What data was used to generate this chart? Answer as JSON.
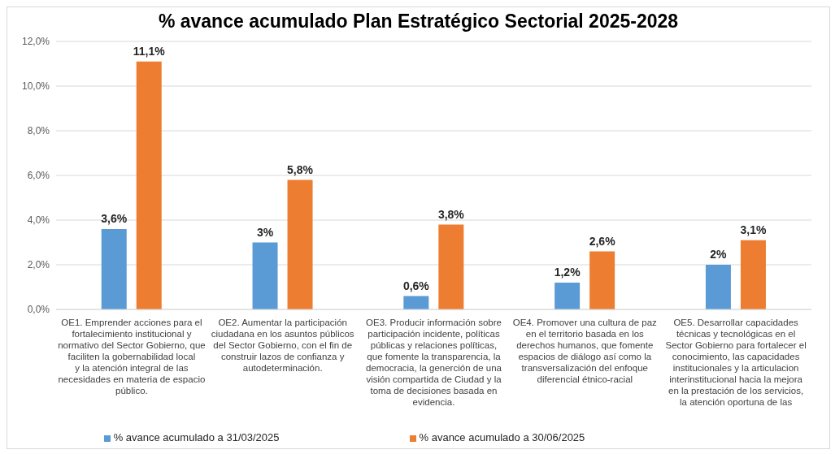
{
  "chart_data": {
    "type": "bar",
    "title": "% avance acumulado Plan Estratégico Sectorial 2025-2028",
    "categories": [
      "OE1. Emprender acciones para el fortalecimiento institucional y normativo del Sector Gobierno, que faciliten la gobernabilidad local y la atención integral de las necesidades en materia de espacio público.",
      "OE2.  Aumentar la participación ciudadana en los asuntos públicos del Sector Gobierno, con el fin de construir lazos de confianza y autodeterminación.",
      "OE3. Producir información sobre participación incidente, políticas públicas y relaciones políticas, que fomente la transparencia, la democracia, la generción de una visión compartida de Ciudad y la toma de decisiones basada en evidencia.",
      "OE4.  Promover una cultura de paz en el territorio basada en los derechos humanos,  que fomente espacios de diálogo así como la transversalización del enfoque diferencial étnico-racial",
      "OE5.  Desarrollar capacidades técnicas y tecnológicas en el Sector Gobierno para fortalecer el conocimiento, las capacidades institucionales y la articulacion interinstitucional hacia la mejora en la prestación de los servicios, la atención oportuna de las"
    ],
    "series": [
      {
        "name": "% avance acumulado a 31/03/2025",
        "color": "#5b9bd5",
        "values": [
          3.6,
          3,
          0.6,
          1.2,
          2
        ],
        "value_labels": [
          "3,6%",
          "3%",
          "0,6%",
          "1,2%",
          "2%"
        ]
      },
      {
        "name": "% avance acumulado a 30/06/2025",
        "color": "#ed7d31",
        "values": [
          11.1,
          5.8,
          3.8,
          2.6,
          3.1
        ],
        "value_labels": [
          "11,1%",
          "5,8%",
          "3,8%",
          "2,6%",
          "3,1%"
        ]
      }
    ],
    "ylim": [
      0,
      12
    ],
    "yticks": [
      {
        "value": 0,
        "label": "0,0%"
      },
      {
        "value": 2,
        "label": "2,0%"
      },
      {
        "value": 4,
        "label": "4,0%"
      },
      {
        "value": 6,
        "label": "6,0%"
      },
      {
        "value": 8,
        "label": "8,0%"
      },
      {
        "value": 10,
        "label": "10,0%"
      },
      {
        "value": 12,
        "label": "12,0%"
      }
    ],
    "grid": "y",
    "legend": "bottom"
  }
}
